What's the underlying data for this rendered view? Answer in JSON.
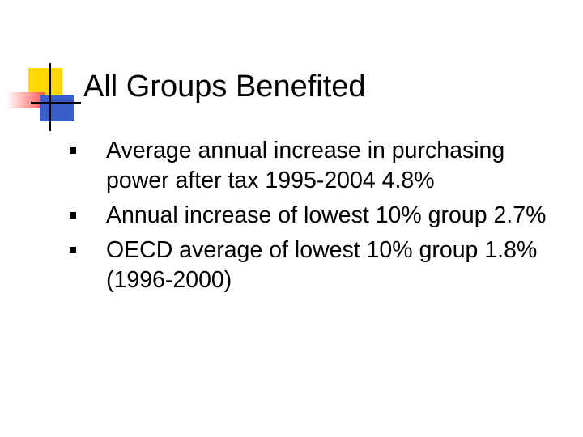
{
  "header": {
    "title": "All Groups Benefited"
  },
  "bullets": [
    "Average annual increase in purchasing power after tax 1995-2004 4.8%",
    "Annual increase of lowest 10% group 2.7%",
    "OECD average of lowest 10% group 1.8% (1996-2000)"
  ]
}
